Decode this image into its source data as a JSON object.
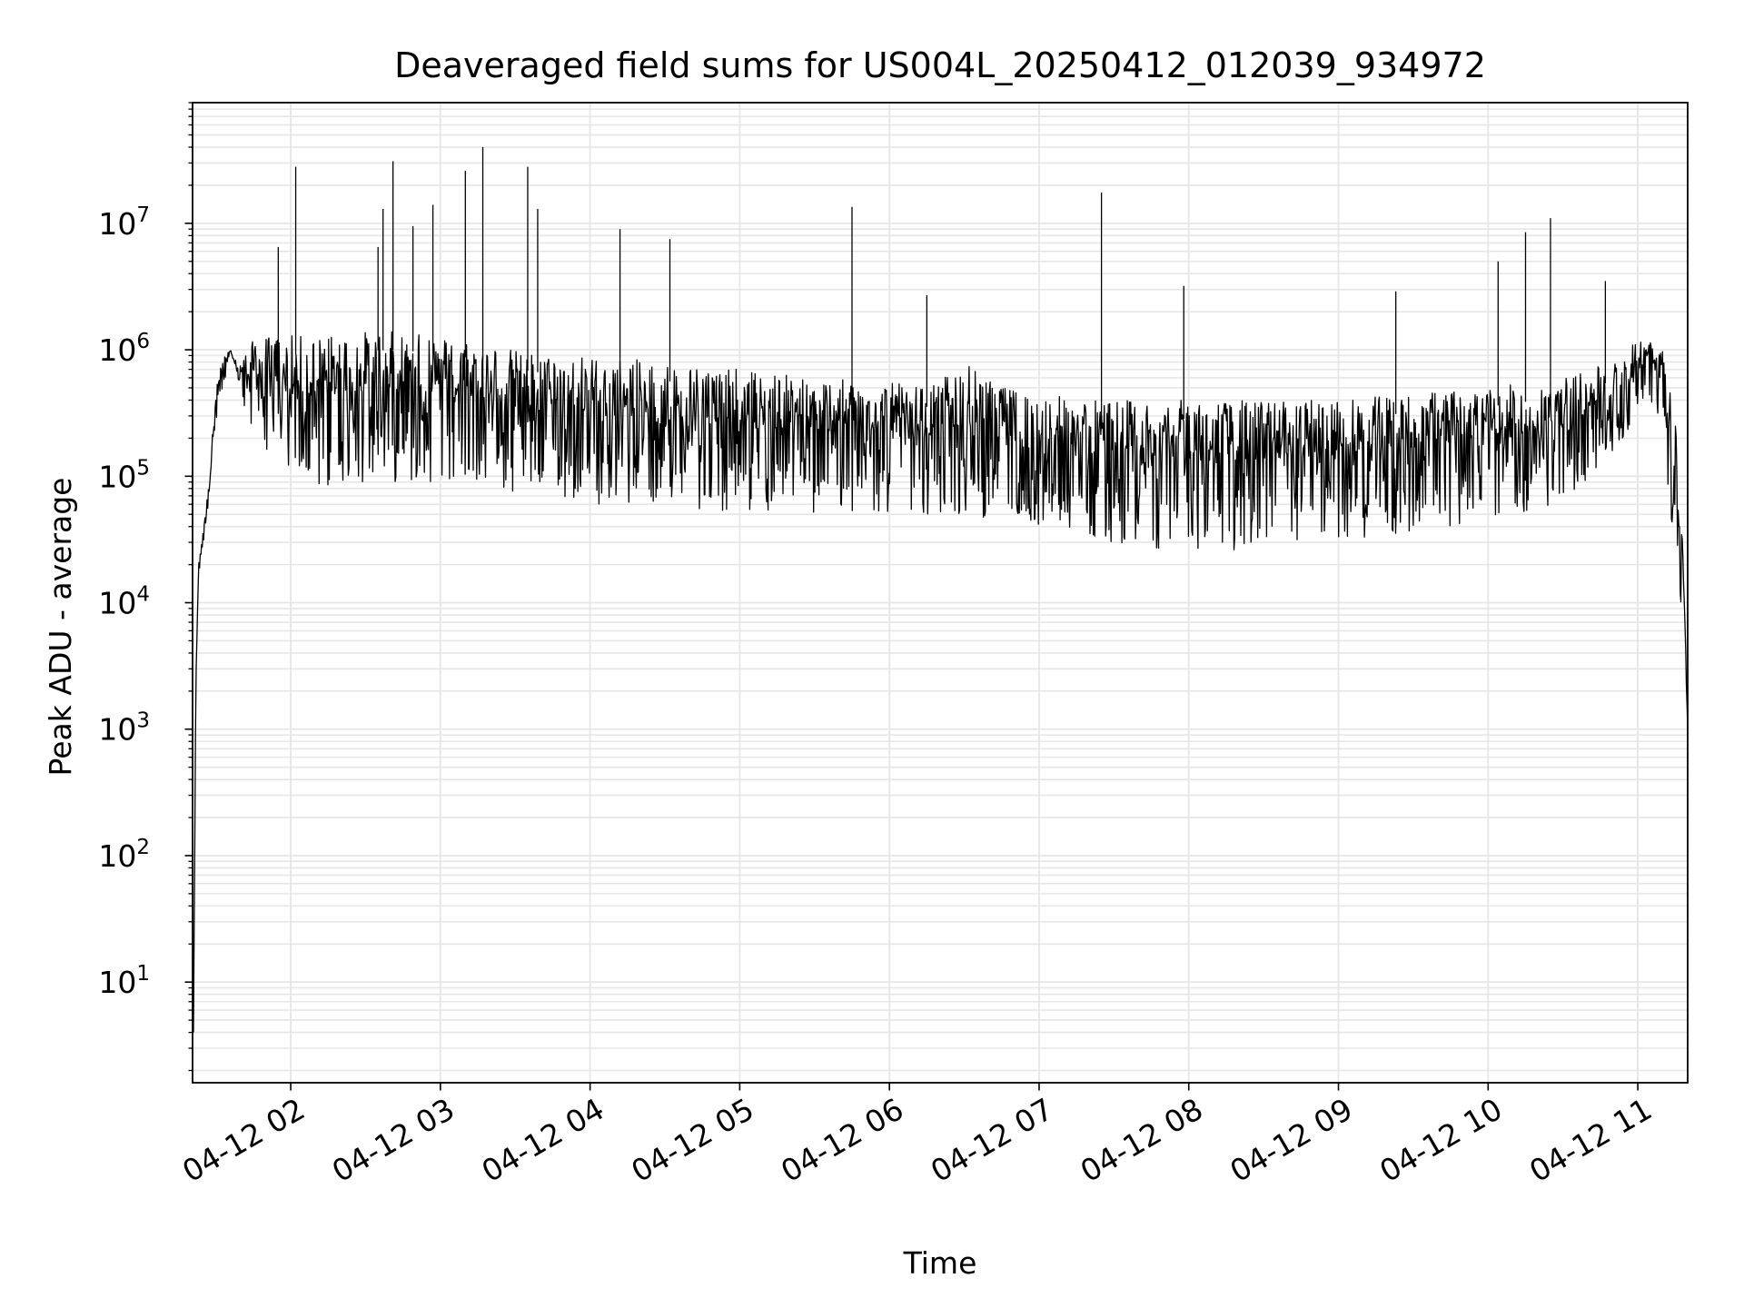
{
  "chart_data": {
    "type": "line",
    "title": "Deaveraged field sums for US004L_20250412_012039_934972",
    "xlabel": "Time",
    "ylabel": "Peak ADU - average",
    "y_scale": "log",
    "y_range": [
      1.6,
      90000000
    ],
    "x_range": [
      "2025-04-12 01:20:39",
      "2025-04-12 11:20:00"
    ],
    "x_tick_labels": [
      "04-12 02",
      "04-12 03",
      "04-12 04",
      "04-12 05",
      "04-12 06",
      "04-12 07",
      "04-12 08",
      "04-12 09",
      "04-12 10",
      "04-12 11"
    ],
    "x_tick_values": [
      "2025-04-12 02:00",
      "2025-04-12 03:00",
      "2025-04-12 04:00",
      "2025-04-12 05:00",
      "2025-04-12 06:00",
      "2025-04-12 07:00",
      "2025-04-12 08:00",
      "2025-04-12 09:00",
      "2025-04-12 10:00",
      "2025-04-12 11:00"
    ],
    "y_tick_values": [
      10,
      100,
      1000,
      10000,
      100000,
      1000000,
      10000000
    ],
    "y_tick_labels": [
      {
        "base": "10",
        "exp": "1"
      },
      {
        "base": "10",
        "exp": "2"
      },
      {
        "base": "10",
        "exp": "3"
      },
      {
        "base": "10",
        "exp": "4"
      },
      {
        "base": "10",
        "exp": "5"
      },
      {
        "base": "10",
        "exp": "6"
      },
      {
        "base": "10",
        "exp": "7"
      }
    ],
    "grid": "both (major and minor)",
    "line_color": "#000000",
    "grid_color": "#e6e6e6",
    "series": [
      {
        "x": [
          "2025-04-12 01:21",
          "2025-04-12 01:22",
          "2025-04-12 01:23",
          "2025-04-12 01:25",
          "2025-04-12 01:27",
          "2025-04-12 01:30",
          "2025-04-12 01:33",
          "2025-04-12 01:36",
          "2025-04-12 01:40",
          "2025-04-12 01:45",
          "2025-04-12 01:52",
          "2025-04-12 02:00",
          "2025-04-12 02:15",
          "2025-04-12 02:30",
          "2025-04-12 02:45",
          "2025-04-12 03:00",
          "2025-04-12 03:15",
          "2025-04-12 03:30",
          "2025-04-12 03:45",
          "2025-04-12 04:00",
          "2025-04-12 04:30",
          "2025-04-12 05:00",
          "2025-04-12 05:30",
          "2025-04-12 06:00",
          "2025-04-12 06:15",
          "2025-04-12 06:30",
          "2025-04-12 06:45",
          "2025-04-12 07:00",
          "2025-04-12 07:30",
          "2025-04-12 08:00",
          "2025-04-12 08:30",
          "2025-04-12 09:00",
          "2025-04-12 09:30",
          "2025-04-12 10:00",
          "2025-04-12 10:30",
          "2025-04-12 10:50",
          "2025-04-12 11:00",
          "2025-04-12 11:05",
          "2025-04-12 11:10",
          "2025-04-12 11:15",
          "2025-04-12 11:18",
          "2025-04-12 11:20"
        ],
        "lower_envelope": [
          4,
          2000,
          15000,
          30000,
          60000,
          250000,
          500000,
          800000,
          400000,
          200000,
          150000,
          80000,
          80000,
          90000,
          90000,
          90000,
          80000,
          70000,
          70000,
          60000,
          60000,
          50000,
          50000,
          50000,
          45000,
          50000,
          45000,
          40000,
          30000,
          25000,
          25000,
          30000,
          35000,
          45000,
          60000,
          150000,
          300000,
          400000,
          200000,
          20000,
          5000,
          1000
        ],
        "upper_envelope": [
          4,
          3000,
          20000,
          40000,
          80000,
          500000,
          900000,
          1000000,
          800000,
          1200000,
          1300000,
          1300000,
          1300000,
          1400000,
          1400000,
          1300000,
          1200000,
          1000000,
          900000,
          900000,
          800000,
          700000,
          600000,
          550000,
          500000,
          800000,
          500000,
          450000,
          400000,
          400000,
          400000,
          400000,
          450000,
          500000,
          600000,
          800000,
          1200000,
          1300000,
          1000000,
          300000,
          40000,
          1000
        ]
      }
    ],
    "spikes": [
      {
        "x": "2025-04-12 02:02",
        "y": 28000000
      },
      {
        "x": "2025-04-12 01:55",
        "y": 6500000
      },
      {
        "x": "2025-04-12 02:37",
        "y": 13000000
      },
      {
        "x": "2025-04-12 02:35",
        "y": 6500000
      },
      {
        "x": "2025-04-12 02:41",
        "y": 31000000
      },
      {
        "x": "2025-04-12 02:49",
        "y": 9500000
      },
      {
        "x": "2025-04-12 02:57",
        "y": 14000000
      },
      {
        "x": "2025-04-12 03:10",
        "y": 26000000
      },
      {
        "x": "2025-04-12 03:17",
        "y": 40000000
      },
      {
        "x": "2025-04-12 03:35",
        "y": 28000000
      },
      {
        "x": "2025-04-12 03:39",
        "y": 13000000
      },
      {
        "x": "2025-04-12 04:12",
        "y": 9000000
      },
      {
        "x": "2025-04-12 04:32",
        "y": 7500000
      },
      {
        "x": "2025-04-12 05:45",
        "y": 13500000
      },
      {
        "x": "2025-04-12 06:15",
        "y": 2700000
      },
      {
        "x": "2025-04-12 07:25",
        "y": 17500000
      },
      {
        "x": "2025-04-12 07:58",
        "y": 3200000
      },
      {
        "x": "2025-04-12 09:23",
        "y": 2900000
      },
      {
        "x": "2025-04-12 10:04",
        "y": 5000000
      },
      {
        "x": "2025-04-12 10:15",
        "y": 8500000
      },
      {
        "x": "2025-04-12 10:25",
        "y": 11000000
      },
      {
        "x": "2025-04-12 10:47",
        "y": 3500000
      }
    ]
  }
}
